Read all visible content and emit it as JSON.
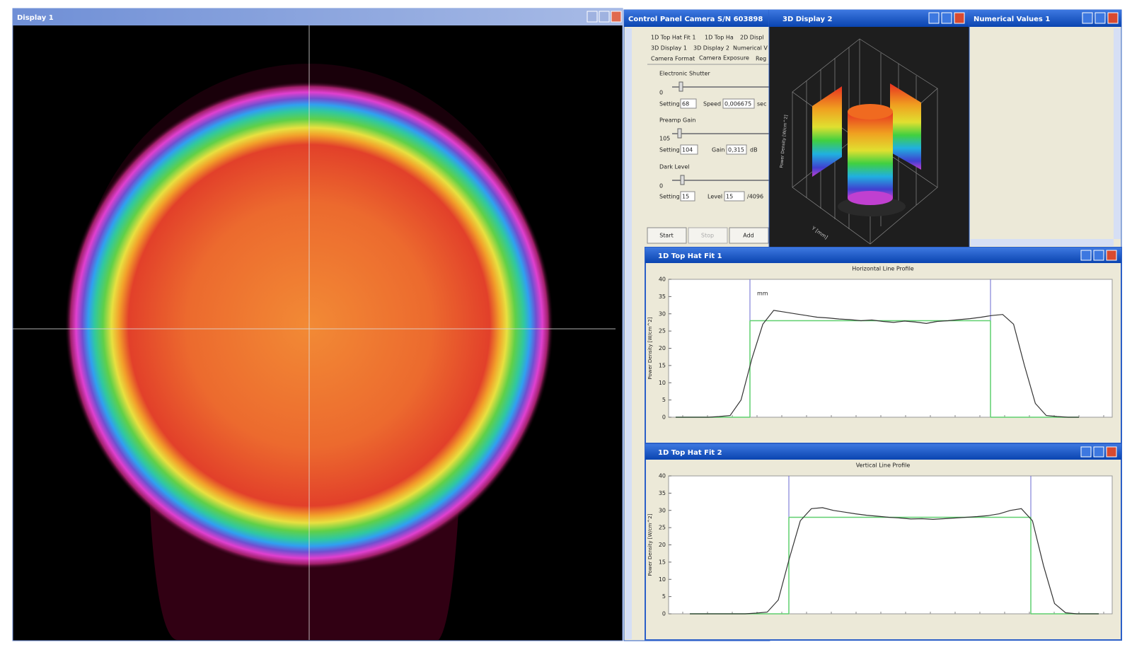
{
  "display": {
    "title": "Display 1"
  },
  "control_panel": {
    "title": "Control Panel Camera S/N 603898",
    "tabs": [
      "1D Top Hat Fit 1",
      "1D Top Ha",
      "2D Displ",
      "3D Display 1",
      "3D Display 2",
      "Numerical V",
      "Camera Format",
      "Camera Exposure",
      "Reg"
    ],
    "shutter": {
      "label": "Electronic Shutter",
      "min": "0",
      "setting_label": "Setting",
      "setting": "68",
      "speed_label": "Speed",
      "speed": "0,006675",
      "unit": "sec"
    },
    "gain": {
      "label": "Preamp Gain",
      "min": "105",
      "setting_label": "Setting",
      "setting": "104",
      "gain_label": "Gain",
      "gain": "0,315",
      "unit": "dB"
    },
    "dark": {
      "label": "Dark Level",
      "min": "0",
      "setting_label": "Setting",
      "setting": "15",
      "level_label": "Level",
      "level": "15",
      "unit": "/4096"
    },
    "buttons": [
      "Start",
      "Stop",
      "Add"
    ]
  },
  "display3d": {
    "title": "3D Display 2",
    "z_label": "Power Density [W/cm^2]",
    "y_label": "Y [mm]"
  },
  "numerical": {
    "title": "Numerical Values 1"
  },
  "chart_data": [
    {
      "type": "line",
      "window_title": "1D Top Hat Fit 1",
      "title": "Horizontal Line Profile",
      "annotation": "mm",
      "y_label": "Power Density [W/cm^2]",
      "color": "#333333",
      "fit_color": "#5fcf6f",
      "fit_level": 28,
      "values": [
        0,
        0,
        0,
        0,
        0.2,
        0.5,
        5,
        17,
        27,
        31,
        30.5,
        30,
        29.5,
        29,
        28.8,
        28.5,
        28.3,
        28,
        28.2,
        27.8,
        27.5,
        27.9,
        27.6,
        27.2,
        27.8,
        28,
        28.3,
        28.6,
        29,
        29.5,
        29.8,
        27,
        15,
        4,
        0.5,
        0.2,
        0,
        0
      ],
      "ylim": [
        0,
        40
      ],
      "yticks": [
        0,
        5,
        10,
        15,
        20,
        25,
        30,
        35,
        40
      ]
    },
    {
      "type": "line",
      "window_title": "1D Top Hat Fit 2",
      "title": "Vertical Line Profile",
      "y_label": "Power Density [W/cm^2]",
      "color": "#333333",
      "fit_color": "#5fcf6f",
      "fit_level": 28,
      "values": [
        0,
        0,
        0,
        0,
        0,
        0,
        0.2,
        0.5,
        4,
        16,
        27,
        30.5,
        30.8,
        30,
        29.5,
        29,
        28.6,
        28.3,
        28,
        27.8,
        27.5,
        27.6,
        27.4,
        27.6,
        27.8,
        28,
        28.2,
        28.5,
        29,
        30,
        30.5,
        27,
        14,
        3,
        0.3,
        0,
        0,
        0
      ],
      "ylim": [
        0,
        40
      ],
      "yticks": [
        0,
        5,
        10,
        15,
        20,
        25,
        30,
        35,
        40
      ]
    }
  ]
}
